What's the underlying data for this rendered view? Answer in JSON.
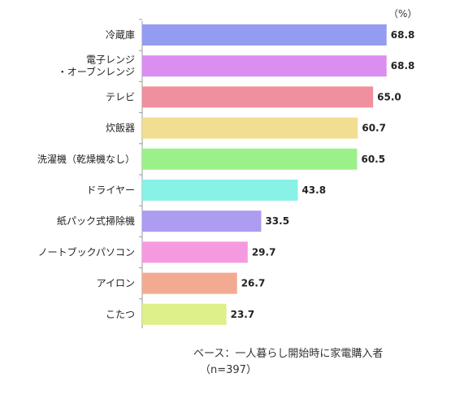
{
  "chart_data": {
    "type": "bar",
    "orientation": "horizontal",
    "unit": "（%）",
    "categories": [
      [
        "冷蔵庫"
      ],
      [
        "電子レンジ",
        "・オーブンレンジ"
      ],
      [
        "テレビ"
      ],
      [
        "炊飯器"
      ],
      [
        "洗濯機（乾燥機なし）"
      ],
      [
        "ドライヤー"
      ],
      [
        "紙パック式掃除機"
      ],
      [
        "ノートブックパソコン"
      ],
      [
        "アイロン"
      ],
      [
        "こたつ"
      ]
    ],
    "values": [
      68.8,
      68.8,
      65.0,
      60.7,
      60.5,
      43.8,
      33.5,
      29.7,
      26.7,
      23.7
    ],
    "value_labels": [
      "68.8",
      "68.8",
      "65.0",
      "60.7",
      "60.5",
      "43.8",
      "33.5",
      "29.7",
      "26.7",
      "23.7"
    ],
    "colors": [
      "#939cf0",
      "#dc8ef0",
      "#f0909e",
      "#f2de90",
      "#9cf08a",
      "#88f2e6",
      "#ad9cf0",
      "#f59ae0",
      "#f2ab90",
      "#def08a"
    ],
    "xlim": [
      0,
      70
    ],
    "grid": false,
    "legend": "none"
  },
  "footnote": {
    "base": "ベース：一人暮らし開始時に家電購入者",
    "n": "（n=397）"
  }
}
